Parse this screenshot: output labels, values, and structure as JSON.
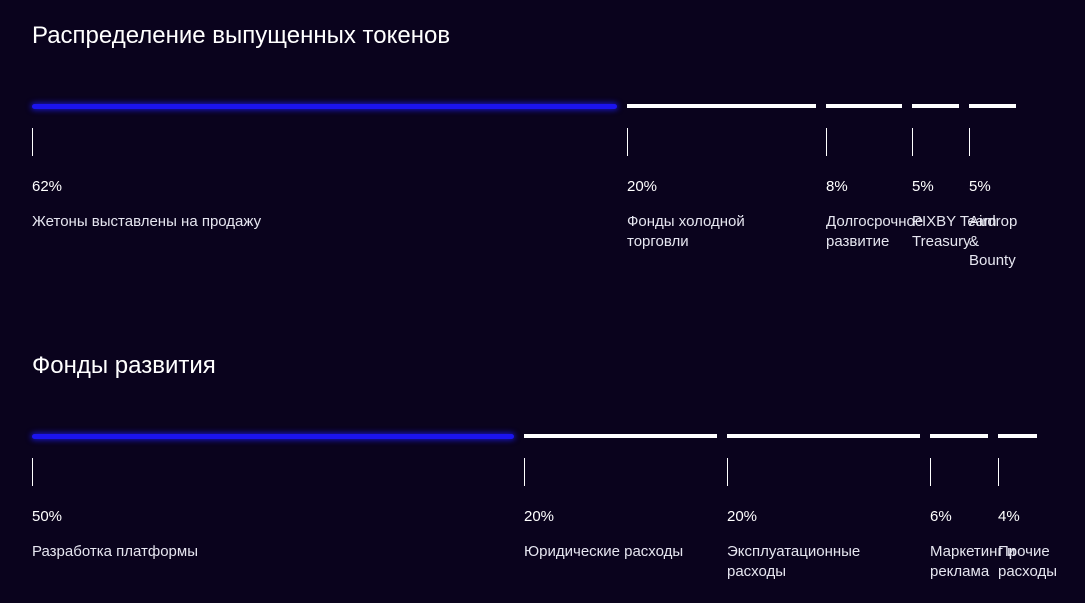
{
  "colors": {
    "background": "#0a031d",
    "highlight": "#1b14ee",
    "segment": "#ffffff",
    "text": "#ffffff"
  },
  "chart_data": [
    {
      "type": "bar",
      "stacked": true,
      "title": "Распределение выпущенных токенов",
      "unit": "%",
      "segments": [
        {
          "label": "Жетоны выставлены на продажу",
          "value": 62,
          "value_label": "62%",
          "highlight": true
        },
        {
          "label": "Фонды холодной торговли",
          "value": 20,
          "value_label": "20%",
          "highlight": false
        },
        {
          "label": "Долгосрочное развитие",
          "value": 8,
          "value_label": "8%",
          "highlight": false
        },
        {
          "label": "PIXBY Team Treasury",
          "value": 5,
          "value_label": "5%",
          "highlight": false
        },
        {
          "label": "Airdrop & Bounty",
          "value": 5,
          "value_label": "5%",
          "highlight": false
        }
      ]
    },
    {
      "type": "bar",
      "stacked": true,
      "title": "Фонды развития",
      "unit": "%",
      "segments": [
        {
          "label": "Разработка платформы",
          "value": 50,
          "value_label": "50%",
          "highlight": true
        },
        {
          "label": "Юридические расходы",
          "value": 20,
          "value_label": "20%",
          "highlight": false
        },
        {
          "label": "Эксплуатационные расходы",
          "value": 20,
          "value_label": "20%",
          "highlight": false
        },
        {
          "label": "Маркетинг и реклама",
          "value": 6,
          "value_label": "6%",
          "highlight": false
        },
        {
          "label": "Прочие расходы",
          "value": 4,
          "value_label": "4%",
          "highlight": false
        }
      ]
    }
  ]
}
